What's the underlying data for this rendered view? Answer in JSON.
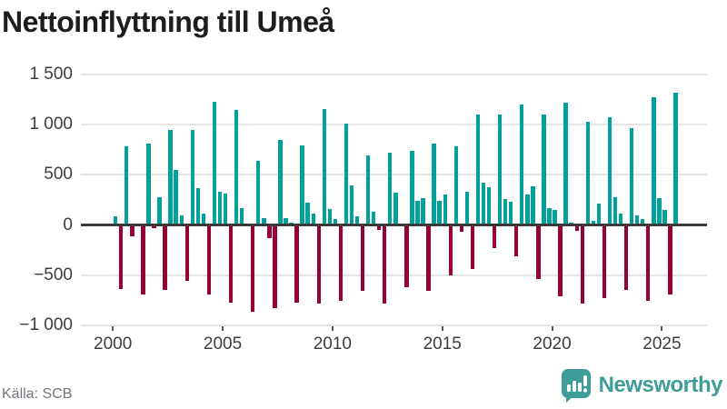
{
  "title": "Nettoinflyttning till Umeå",
  "source": "Källa: SCB",
  "brand": {
    "name": "Newsworthy",
    "icon": "newsworthy-chart-bubble-icon",
    "color": "#3e9d98"
  },
  "colors": {
    "positive_bar": "#00a29b",
    "negative_bar": "#98003a",
    "zero_line": "#3a3a3a",
    "gridline": "#e4e4e4",
    "axis_text": "#3d3d3d",
    "title_text": "#1d1d1d",
    "source_text": "#74747c",
    "background": "#ffffff"
  },
  "chart_data": {
    "type": "bar",
    "title": "Nettoinflyttning till Umeå",
    "xlabel": "",
    "ylabel": "",
    "x_unit": "quarter",
    "range": "2000 Q1 – 2025 Q3",
    "ylim": [
      -1000,
      1500
    ],
    "grid": "horizontal",
    "legend": "none",
    "y_ticks": [
      {
        "value": 1500,
        "label": "1 500"
      },
      {
        "value": 1000,
        "label": "1 000"
      },
      {
        "value": 500,
        "label": "500"
      },
      {
        "value": 0,
        "label": "0"
      },
      {
        "value": -500,
        "label": "−500"
      },
      {
        "value": -1000,
        "label": "−1 000"
      }
    ],
    "x_ticks": [
      {
        "year": 2000,
        "label": "2000"
      },
      {
        "year": 2005,
        "label": "2005"
      },
      {
        "year": 2010,
        "label": "2010"
      },
      {
        "year": 2015,
        "label": "2015"
      },
      {
        "year": 2020,
        "label": "2020"
      },
      {
        "year": 2025,
        "label": "2025"
      }
    ],
    "years": [
      {
        "year": 2000,
        "values": [
          85,
          -635,
          785,
          -110
        ]
      },
      {
        "year": 2001,
        "values": [
          0,
          -695,
          815,
          -30
        ]
      },
      {
        "year": 2002,
        "values": [
          280,
          -645,
          950,
          550
        ]
      },
      {
        "year": 2003,
        "values": [
          95,
          -555,
          945,
          370
        ]
      },
      {
        "year": 2004,
        "values": [
          110,
          -690,
          1225,
          335
        ]
      },
      {
        "year": 2005,
        "values": [
          310,
          -770,
          1150,
          165
        ]
      },
      {
        "year": 2006,
        "values": [
          0,
          -860,
          635,
          65
        ]
      },
      {
        "year": 2007,
        "values": [
          -135,
          -830,
          850,
          70
        ]
      },
      {
        "year": 2008,
        "values": [
          25,
          -770,
          795,
          220
        ]
      },
      {
        "year": 2009,
        "values": [
          115,
          -780,
          1155,
          155
        ]
      },
      {
        "year": 2010,
        "values": [
          60,
          -755,
          1015,
          395
        ]
      },
      {
        "year": 2011,
        "values": [
          90,
          -660,
          690,
          135
        ]
      },
      {
        "year": 2012,
        "values": [
          -45,
          -780,
          720,
          320
        ]
      },
      {
        "year": 2013,
        "values": [
          0,
          -620,
          735,
          245
        ]
      },
      {
        "year": 2014,
        "values": [
          270,
          -660,
          810,
          245
        ]
      },
      {
        "year": 2015,
        "values": [
          305,
          -500,
          785,
          -70
        ]
      },
      {
        "year": 2016,
        "values": [
          335,
          -440,
          1100,
          425
        ]
      },
      {
        "year": 2017,
        "values": [
          375,
          -230,
          1100,
          255
        ]
      },
      {
        "year": 2018,
        "values": [
          230,
          -310,
          1200,
          305
        ]
      },
      {
        "year": 2019,
        "values": [
          390,
          -540,
          1105,
          170
        ]
      },
      {
        "year": 2020,
        "values": [
          150,
          -710,
          1220,
          25
        ]
      },
      {
        "year": 2021,
        "values": [
          -60,
          -785,
          1030,
          45
        ]
      },
      {
        "year": 2022,
        "values": [
          215,
          -725,
          1070,
          275
        ]
      },
      {
        "year": 2023,
        "values": [
          110,
          -645,
          970,
          100
        ]
      },
      {
        "year": 2024,
        "values": [
          60,
          -755,
          1275,
          270
        ]
      },
      {
        "year": 2025,
        "values": [
          150,
          -690,
          1315
        ]
      }
    ]
  }
}
